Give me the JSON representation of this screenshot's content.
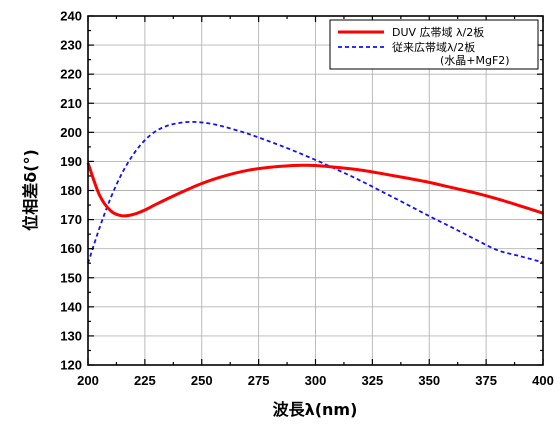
{
  "chart_data": {
    "type": "line",
    "title": "",
    "xlabel": "波長λ(nm)",
    "ylabel": "位相差δ(°)",
    "xlim": [
      200,
      400
    ],
    "ylim": [
      120,
      240
    ],
    "xticks": [
      200,
      225,
      250,
      275,
      300,
      325,
      350,
      375,
      400
    ],
    "yticks": [
      120,
      130,
      140,
      150,
      160,
      170,
      180,
      190,
      200,
      210,
      220,
      230,
      240
    ],
    "grid": true,
    "legend_position": "top-right",
    "series": [
      {
        "name": "DUV 広帯域 λ/2板",
        "color": "#ff0000",
        "style": "solid",
        "x": [
          200,
          205,
          210,
          215,
          220,
          225,
          230,
          240,
          250,
          260,
          270,
          280,
          290,
          295,
          300,
          310,
          320,
          330,
          340,
          350,
          360,
          370,
          380,
          390,
          400
        ],
        "y": [
          189.5,
          178.5,
          173.0,
          171.3,
          171.8,
          173.3,
          175.3,
          179.0,
          182.4,
          185.0,
          186.9,
          188.0,
          188.6,
          188.7,
          188.6,
          187.9,
          187.0,
          185.7,
          184.3,
          182.8,
          181.0,
          179.2,
          177.1,
          174.7,
          172.2
        ]
      },
      {
        "name": "従来広帯域λ/2板",
        "name_note": "(水晶+MgF2)",
        "color": "#1010ff",
        "style": "dashed",
        "x": [
          200,
          205,
          210,
          215,
          220,
          225,
          230,
          235,
          240,
          245,
          250,
          255,
          260,
          270,
          280,
          290,
          300,
          310,
          320,
          330,
          340,
          350,
          360,
          370,
          380,
          390,
          400
        ],
        "y": [
          155.0,
          167.0,
          177.5,
          186.0,
          192.5,
          197.3,
          200.5,
          202.3,
          203.2,
          203.6,
          203.4,
          202.8,
          201.9,
          199.6,
          196.8,
          193.8,
          190.5,
          187.0,
          183.3,
          179.3,
          175.3,
          171.2,
          167.3,
          163.3,
          159.5,
          157.4,
          155.3
        ]
      }
    ]
  }
}
